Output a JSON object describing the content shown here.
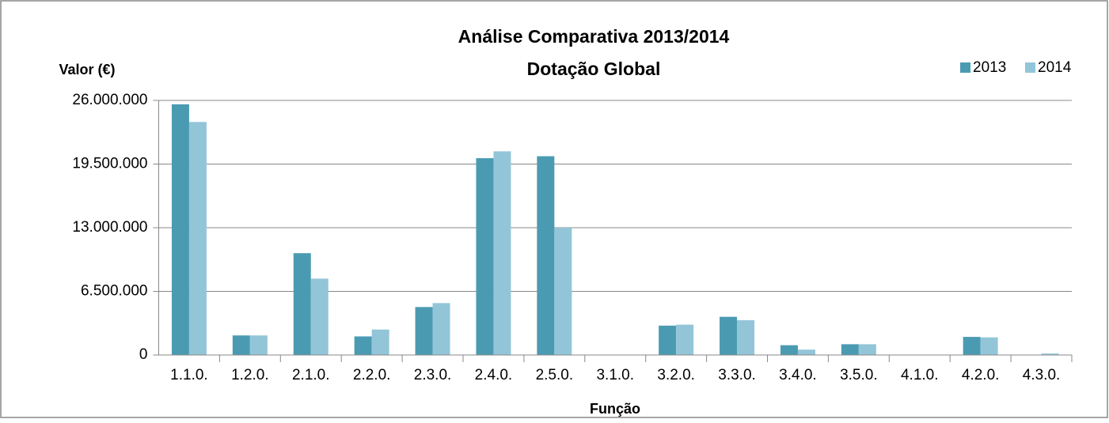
{
  "chart_data": {
    "type": "bar",
    "title": "Análise Comparativa 2013/2014",
    "subtitle": "Dotação Global",
    "y_label": "Valor (€)",
    "x_label": "Função",
    "categories": [
      "1.1.0.",
      "1.2.0.",
      "2.1.0.",
      "2.2.0.",
      "2.3.0.",
      "2.4.0.",
      "2.5.0.",
      "3.1.0.",
      "3.2.0.",
      "3.3.0.",
      "3.4.0.",
      "3.5.0.",
      "4.1.0.",
      "4.2.0.",
      "4.3.0."
    ],
    "series": [
      {
        "name": "2013",
        "color": "#4a9bb2",
        "values": [
          25600000,
          2000000,
          10400000,
          1900000,
          4900000,
          20100000,
          20300000,
          0,
          3000000,
          3900000,
          1000000,
          1100000,
          0,
          1850000,
          0
        ]
      },
      {
        "name": "2014",
        "color": "#93c5d8",
        "values": [
          23800000,
          2000000,
          7800000,
          2600000,
          5300000,
          20800000,
          13000000,
          0,
          3100000,
          3550000,
          550000,
          1100000,
          0,
          1800000,
          150000
        ]
      }
    ],
    "ylim": [
      0,
      26000000
    ],
    "yticks": [
      0,
      {
        "value": 6500000,
        "label": "6.500.000"
      },
      {
        "value": 13000000,
        "label": "13.000.000"
      },
      {
        "value": 19500000,
        "label": "19.500.000"
      },
      {
        "value": 26000000,
        "label": "26.000.000"
      }
    ],
    "grid": true,
    "legend": "top-right"
  }
}
